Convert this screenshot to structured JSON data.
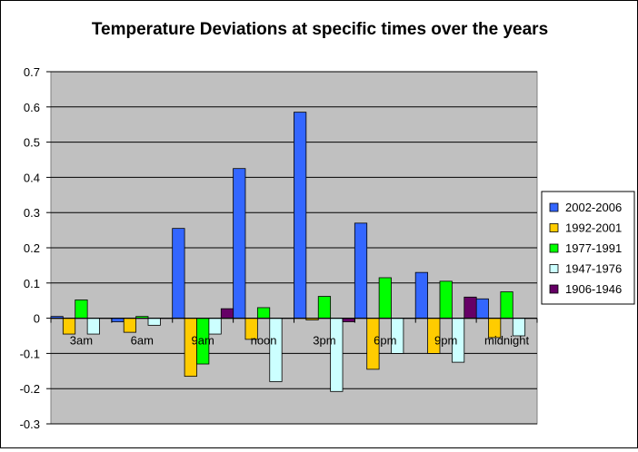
{
  "chart_data": {
    "type": "bar",
    "title": "Temperature Deviations at specific times over the years",
    "xlabel": "",
    "ylabel": "",
    "categories": [
      "3am",
      "6am",
      "9am",
      "noon",
      "3pm",
      "6pm",
      "9pm",
      "midnight"
    ],
    "ylim": [
      -0.3,
      0.7
    ],
    "yticks": [
      "0.7",
      "0.6",
      "0.5",
      "0.4",
      "0.3",
      "0.2",
      "0.1",
      "0",
      "-0.1",
      "-0.2",
      "-0.3"
    ],
    "grid": "horizontal",
    "legend_position": "right",
    "plot_background": "#c0c0c0",
    "series": [
      {
        "name": "2002-2006",
        "color": "#3366ff",
        "values": [
          0.005,
          -0.01,
          0.255,
          0.425,
          0.585,
          0.27,
          0.13,
          0.055
        ]
      },
      {
        "name": "1992-2001",
        "color": "#ffcc00",
        "values": [
          -0.045,
          -0.04,
          -0.165,
          -0.06,
          -0.005,
          -0.145,
          -0.1,
          -0.055
        ]
      },
      {
        "name": "1977-1991",
        "color": "#00ff00",
        "values": [
          0.052,
          0.005,
          -0.13,
          0.03,
          0.062,
          0.115,
          0.105,
          0.075
        ]
      },
      {
        "name": "1947-1976",
        "color": "#ccffff",
        "values": [
          -0.045,
          -0.02,
          -0.045,
          -0.18,
          -0.208,
          -0.1,
          -0.125,
          -0.05
        ]
      },
      {
        "name": "1906-1946",
        "color": "#660066",
        "values": [
          0,
          0,
          0.027,
          0,
          -0.01,
          0,
          0.06,
          0
        ]
      }
    ]
  }
}
